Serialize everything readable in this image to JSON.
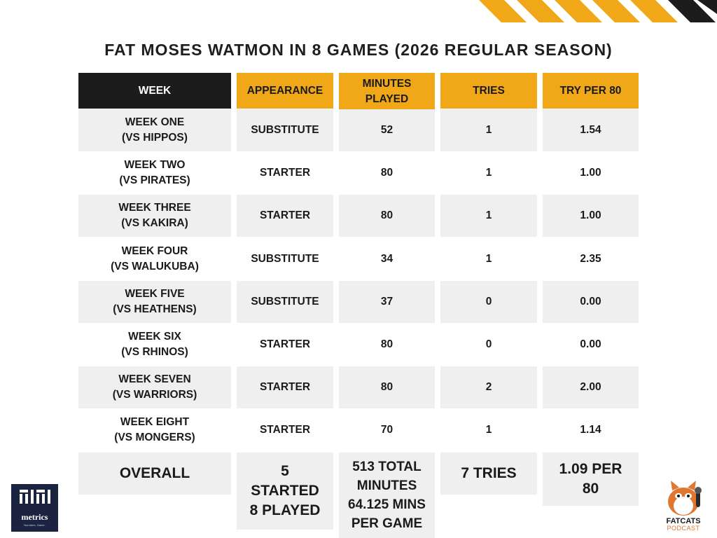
{
  "title": "FAT MOSES WATMON IN 8 GAMES (2026 REGULAR SEASON)",
  "colors": {
    "header_dark": "#1c1c1c",
    "header_yellow": "#f0a818",
    "row_gray": "#efefef",
    "stripe_yellow": "#f0a818"
  },
  "chart_data": {
    "type": "table",
    "columns": [
      "WEEK",
      "APPEARANCE",
      "MINUTES PLAYED",
      "TRIES",
      "TRY PER 80"
    ],
    "header_lines": {
      "week": [
        "WEEK"
      ],
      "appearance": [
        "APPEARANCE"
      ],
      "minutes": [
        "MINUTES",
        "PLAYED"
      ],
      "tries": [
        "TRIES"
      ],
      "try80": [
        "TRY PER 80"
      ]
    },
    "rows": [
      {
        "week": [
          "WEEK ONE",
          "(VS HIPPOS)"
        ],
        "appearance": "SUBSTITUTE",
        "minutes": "52",
        "tries": "1",
        "try80": "1.54"
      },
      {
        "week": [
          "WEEK TWO",
          "(VS PIRATES)"
        ],
        "appearance": "STARTER",
        "minutes": "80",
        "tries": "1",
        "try80": "1.00"
      },
      {
        "week": [
          "WEEK THREE",
          "(VS KAKIRA)"
        ],
        "appearance": "STARTER",
        "minutes": "80",
        "tries": "1",
        "try80": "1.00"
      },
      {
        "week": [
          "WEEK FOUR",
          "(VS WALUKUBA)"
        ],
        "appearance": "SUBSTITUTE",
        "minutes": "34",
        "tries": "1",
        "try80": "2.35"
      },
      {
        "week": [
          "WEEK FIVE",
          "(VS HEATHENS)"
        ],
        "appearance": "SUBSTITUTE",
        "minutes": "37",
        "tries": "0",
        "try80": "0.00"
      },
      {
        "week": [
          "WEEK SIX",
          "(VS RHINOS)"
        ],
        "appearance": "STARTER",
        "minutes": "80",
        "tries": "0",
        "try80": "0.00"
      },
      {
        "week": [
          "WEEK SEVEN",
          "(VS WARRIORS)"
        ],
        "appearance": "STARTER",
        "minutes": "80",
        "tries": "2",
        "try80": "2.00"
      },
      {
        "week": [
          "WEEK EIGHT",
          "(VS MONGERS)"
        ],
        "appearance": "STARTER",
        "minutes": "70",
        "tries": "1",
        "try80": "1.14"
      }
    ],
    "overall": {
      "week": [
        "OVERALL"
      ],
      "appearance": [
        "5",
        "STARTED",
        "8 PLAYED"
      ],
      "minutes": [
        "513 TOTAL",
        "MINUTES",
        "64.125 MINS",
        "PER GAME"
      ],
      "tries": [
        "7 TRIES"
      ],
      "try80": [
        "1.09 PER",
        "80"
      ]
    }
  },
  "logos": {
    "left": {
      "name": "metrics",
      "tagline": "Numbers. Game."
    },
    "right": {
      "line1": "FATCATS",
      "line2": "PODCAST"
    }
  }
}
